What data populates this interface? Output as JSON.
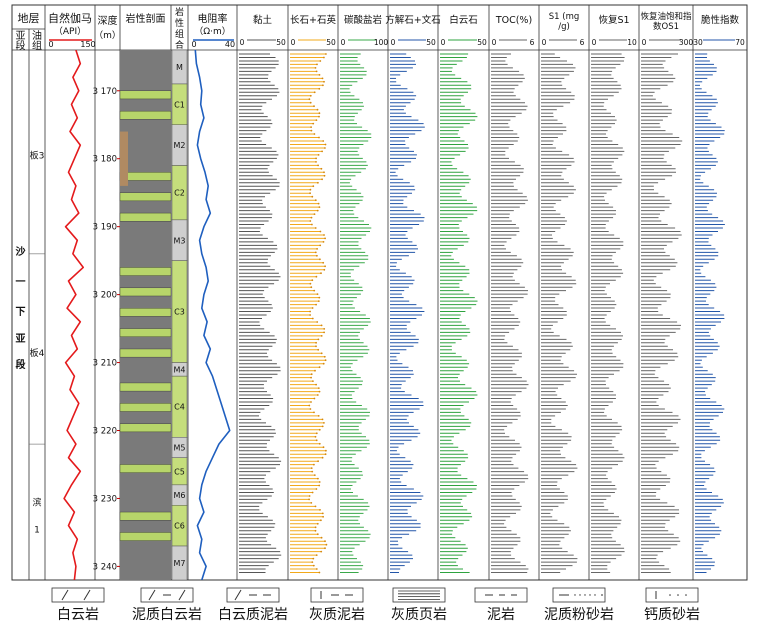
{
  "chart_data": {
    "type": "bar",
    "header": {
      "strata": "地层",
      "sub_member": "亚段",
      "oil_group": "油组",
      "gr_title": "自然伽马",
      "gr_unit": "（API）",
      "gr_scale": [
        "0",
        "150"
      ],
      "depth_title": "深度",
      "depth_unit": "（m）",
      "lith_title": "岩性剖面",
      "combo_title": [
        "岩",
        "性",
        "组",
        "合"
      ],
      "res_title": "电阻率",
      "res_unit": "（Ω·m）",
      "res_scale": [
        "0",
        "40"
      ]
    },
    "strata": {
      "sub_member_chars": [
        "沙",
        "一",
        "下",
        "亚",
        "段"
      ],
      "oil_groups": [
        "板3",
        "板4",
        "滨",
        "1"
      ]
    },
    "depth_axis": {
      "ticks": [
        3170,
        3180,
        3190,
        3200,
        3210,
        3220,
        3230,
        3240
      ],
      "tick_labels": [
        "3 170",
        "3 180",
        "3 190",
        "3 200",
        "3 210",
        "3 220",
        "3 230",
        "3 240"
      ],
      "range": [
        3164,
        3242
      ]
    },
    "lithofacies": [
      {
        "label": "M",
        "top": 3164,
        "bottom": 3169
      },
      {
        "label": "C1",
        "top": 3169,
        "bottom": 3175
      },
      {
        "label": "M2",
        "top": 3175,
        "bottom": 3181
      },
      {
        "label": "C2",
        "top": 3181,
        "bottom": 3189
      },
      {
        "label": "M3",
        "top": 3189,
        "bottom": 3195
      },
      {
        "label": "C3",
        "top": 3195,
        "bottom": 3210
      },
      {
        "label": "M4",
        "top": 3210,
        "bottom": 3212
      },
      {
        "label": "C4",
        "top": 3212,
        "bottom": 3221
      },
      {
        "label": "M5",
        "top": 3221,
        "bottom": 3224
      },
      {
        "label": "C5",
        "top": 3224,
        "bottom": 3228
      },
      {
        "label": "M6",
        "top": 3228,
        "bottom": 3231
      },
      {
        "label": "C6",
        "top": 3231,
        "bottom": 3237
      },
      {
        "label": "M7",
        "top": 3237,
        "bottom": 3242
      }
    ],
    "gamma_ray": {
      "name": "自然伽马",
      "color": "#e41a1c",
      "depths": [
        3164,
        3166,
        3168,
        3170,
        3172,
        3174,
        3176,
        3178,
        3180,
        3182,
        3184,
        3186,
        3188,
        3190,
        3192,
        3194,
        3196,
        3198,
        3200,
        3202,
        3204,
        3206,
        3208,
        3210,
        3212,
        3214,
        3216,
        3218,
        3220,
        3222,
        3224,
        3226,
        3228,
        3230,
        3232,
        3234,
        3236,
        3238,
        3240,
        3242
      ],
      "values": [
        95,
        110,
        85,
        105,
        80,
        100,
        75,
        110,
        90,
        70,
        95,
        80,
        105,
        60,
        100,
        85,
        120,
        70,
        95,
        65,
        110,
        80,
        100,
        60,
        90,
        75,
        105,
        85,
        65,
        95,
        70,
        110,
        80,
        55,
        90,
        70,
        100,
        85,
        95,
        90
      ]
    },
    "resistivity": {
      "name": "电阻率",
      "color": "#1f5fbf",
      "depths": [
        3164,
        3166,
        3168,
        3170,
        3172,
        3174,
        3176,
        3178,
        3180,
        3182,
        3184,
        3186,
        3188,
        3190,
        3192,
        3194,
        3196,
        3198,
        3200,
        3202,
        3204,
        3206,
        3208,
        3210,
        3212,
        3214,
        3216,
        3218,
        3220,
        3222,
        3224,
        3226,
        3228,
        3230,
        3232,
        3234,
        3236,
        3238,
        3240,
        3242
      ],
      "values": [
        4,
        5,
        8,
        10,
        9,
        12,
        8,
        6,
        9,
        13,
        16,
        14,
        18,
        12,
        8,
        10,
        14,
        16,
        12,
        10,
        15,
        12,
        18,
        14,
        20,
        24,
        28,
        32,
        36,
        26,
        20,
        14,
        10,
        8,
        12,
        6,
        10,
        8,
        14,
        10
      ]
    },
    "bar_tracks": [
      {
        "title": "黏土",
        "scale": [
          "0",
          "50"
        ],
        "max": 50,
        "color": "#555555",
        "base": 33,
        "amp": 12
      },
      {
        "title": "长石+石英",
        "scale": [
          "0",
          "50"
        ],
        "max": 50,
        "color": "#f2a91a",
        "base": 30,
        "amp": 10
      },
      {
        "title": "碳酸盐岩",
        "scale": [
          "0",
          "100"
        ],
        "max": 100,
        "color": "#3aa84a",
        "base": 45,
        "amp": 25
      },
      {
        "title": "方解石+文石",
        "scale": [
          "0",
          "50"
        ],
        "max": 50,
        "color": "#2356a8",
        "base": 22,
        "amp": 16
      },
      {
        "title": "白云石",
        "scale": [
          "0",
          "50"
        ],
        "max": 50,
        "color": "#2ea33f",
        "base": 26,
        "amp": 14
      },
      {
        "title": "TOC(%)",
        "scale": [
          "0",
          "6"
        ],
        "max": 6,
        "color": "#666666",
        "base": 3.3,
        "amp": 1.6
      },
      {
        "title": "S1 (mg/g)",
        "scale": [
          "0",
          "6"
        ],
        "max": 6,
        "color": "#666666",
        "base": 3.0,
        "amp": 1.8
      },
      {
        "title": "恢复S1",
        "scale": [
          "0",
          "10"
        ],
        "max": 10,
        "color": "#666666",
        "base": 5.0,
        "amp": 2.5
      },
      {
        "title": "恢复油饱和指数OS1",
        "scale": [
          "0",
          "300"
        ],
        "max": 300,
        "color": "#666666",
        "base": 160,
        "amp": 90
      },
      {
        "title": "脆性指数",
        "scale": [
          "30",
          "70"
        ],
        "min": 30,
        "max": 70,
        "color": "#2356a8",
        "base": 44,
        "amp": 10
      }
    ],
    "legend": [
      {
        "label": "白云岩",
        "pattern": "dolomite"
      },
      {
        "label": "泥质白云岩",
        "pattern": "argillaceous-dolomite"
      },
      {
        "label": "白云质泥岩",
        "pattern": "dolomitic-mudstone"
      },
      {
        "label": "灰质泥岩",
        "pattern": "calcareous-mudstone"
      },
      {
        "label": "灰质页岩",
        "pattern": "calcareous-shale"
      },
      {
        "label": "泥岩",
        "pattern": "mudstone"
      },
      {
        "label": "泥质粉砂岩",
        "pattern": "argillaceous-siltstone"
      },
      {
        "label": "钙质砂岩",
        "pattern": "calcareous-sandstone"
      }
    ]
  }
}
